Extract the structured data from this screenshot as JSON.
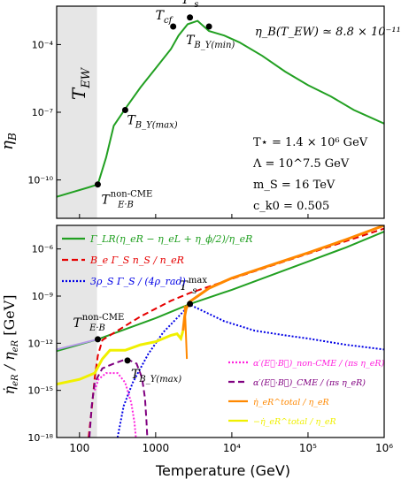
{
  "chart_data": [
    {
      "type": "line",
      "panel": "top",
      "ylabel": "η_B",
      "yscale": "log",
      "ylim_log10": [
        -11.7,
        -2.3
      ],
      "xscale": "log",
      "xlim_log10": [
        1.7,
        6.0
      ],
      "yticks": [
        {
          "v": -4,
          "t": "10⁻⁴"
        },
        {
          "v": -7,
          "t": "10⁻⁷"
        },
        {
          "v": -10,
          "t": "10⁻¹⁰"
        }
      ],
      "shaded_region_label": "T_EW",
      "shaded_range_log10": [
        1.7,
        2.23
      ],
      "series": [
        {
          "color": "#22a022",
          "points": [
            [
              1.7,
              -10.75
            ],
            [
              1.9,
              -10.55
            ],
            [
              2.1,
              -10.35
            ],
            [
              2.24,
              -10.2
            ],
            [
              2.35,
              -9.0
            ],
            [
              2.45,
              -7.6
            ],
            [
              2.6,
              -6.85
            ],
            [
              2.8,
              -5.9
            ],
            [
              3.0,
              -5.05
            ],
            [
              3.2,
              -4.2
            ],
            [
              3.3,
              -3.6
            ],
            [
              3.42,
              -3.1
            ],
            [
              3.55,
              -2.95
            ],
            [
              3.7,
              -3.4
            ],
            [
              3.9,
              -3.6
            ],
            [
              4.1,
              -3.9
            ],
            [
              4.4,
              -4.5
            ],
            [
              4.7,
              -5.2
            ],
            [
              5.0,
              -5.8
            ],
            [
              5.3,
              -6.3
            ],
            [
              5.6,
              -6.9
            ],
            [
              6.0,
              -7.5
            ]
          ]
        }
      ],
      "markers": [
        {
          "x": 2.24,
          "y": -10.2,
          "label_main": "T",
          "label_sub": "E·B",
          "label_sup": "non-CME"
        },
        {
          "x": 2.6,
          "y": -6.9,
          "label_main": "T",
          "label_sub": "B_Y(max)"
        },
        {
          "x": 3.23,
          "y": -3.2,
          "label_main": "T",
          "label_sub": "cf"
        },
        {
          "x": 3.45,
          "y": -2.8,
          "label_main": "T",
          "label_sub": "s",
          "label_sup": "max"
        },
        {
          "x": 3.7,
          "y": -3.2,
          "label_main": "T",
          "label_sub": "B_Y(min)"
        }
      ],
      "annotations": {
        "eta_result": "η_B(T_EW) ≃ 8.8 × 10⁻¹¹",
        "params": [
          "T⋆ = 1.4 × 10⁶ GeV",
          "Λ = 10^7.5 GeV",
          "m_S = 16 TeV",
          "c_k0 = 0.505"
        ]
      }
    },
    {
      "type": "line",
      "panel": "bottom",
      "xlabel": "Temperature (GeV)",
      "ylabel": "η̇_eR / η_eR [GeV]",
      "xscale": "log",
      "yscale": "log",
      "xlim_log10": [
        1.7,
        6.0
      ],
      "ylim_log10": [
        -18,
        -4.5
      ],
      "xticks": [
        {
          "v": 2,
          "t": "100"
        },
        {
          "v": 3,
          "t": "1000"
        },
        {
          "v": 4,
          "t": "10⁴"
        },
        {
          "v": 5,
          "t": "10⁵"
        },
        {
          "v": 6,
          "t": "10⁶"
        }
      ],
      "yticks": [
        {
          "v": -6,
          "t": "10⁻⁶"
        },
        {
          "v": -9,
          "t": "10⁻⁹"
        },
        {
          "v": -12,
          "t": "10⁻¹²"
        },
        {
          "v": -15,
          "t": "10⁻¹⁵"
        },
        {
          "v": -18,
          "t": "10⁻¹⁸"
        }
      ],
      "legend_upper": [
        {
          "label": "Γ_LR(η_eR − η_eL + η_ϕ/2)/η_eR",
          "color": "#22a022",
          "dash": ""
        },
        {
          "label": "B_e Γ_S n_S / n_eR",
          "color": "#e60000",
          "dash": "7,4"
        },
        {
          "label": "3ρ_S Γ_S / (4ρ_rad)",
          "color": "#0000e6",
          "dash": "2,2"
        }
      ],
      "legend_lower": [
        {
          "label": "α′(E⃗·B⃗)_non-CME / (πs η_eR)",
          "color": "#ff22dd",
          "dash": "2,2"
        },
        {
          "label": "α′(E⃗·B⃗)_CME / (πs η_eR)",
          "color": "#800080",
          "dash": "7,4"
        },
        {
          "label": "η̇_eR^total / η_eR",
          "color": "#ff8800",
          "dash": ""
        },
        {
          "label": "−η̇_eR^total / η_eR",
          "color": "#f0f000",
          "dash": ""
        }
      ],
      "series": [
        {
          "name": "gamma_lr",
          "color": "#22a022",
          "width": 2,
          "dash": "",
          "points": [
            [
              1.7,
              -12.5
            ],
            [
              2.24,
              -11.75
            ],
            [
              3.0,
              -10.4
            ],
            [
              3.45,
              -9.5
            ],
            [
              4.0,
              -8.6
            ],
            [
              4.5,
              -7.7
            ],
            [
              5.0,
              -6.8
            ],
            [
              5.5,
              -5.9
            ],
            [
              6.0,
              -4.9
            ]
          ]
        },
        {
          "name": "be_gamma",
          "color": "#e60000",
          "width": 2,
          "dash": "7,4",
          "points": [
            [
              2.12,
              -18
            ],
            [
              2.16,
              -16.2
            ],
            [
              2.2,
              -14.2
            ],
            [
              2.24,
              -12.8
            ],
            [
              2.3,
              -11.8
            ],
            [
              2.5,
              -11.2
            ],
            [
              2.8,
              -10.3
            ],
            [
              3.0,
              -9.8
            ],
            [
              3.2,
              -9.3
            ],
            [
              3.45,
              -8.8
            ],
            [
              3.7,
              -8.4
            ],
            [
              4.0,
              -7.9
            ],
            [
              4.5,
              -7.1
            ],
            [
              5.0,
              -6.3
            ],
            [
              5.5,
              -5.5
            ],
            [
              6.0,
              -4.7
            ]
          ]
        },
        {
          "name": "rho_s",
          "color": "#0000e6",
          "width": 2,
          "dash": "2,2",
          "points": [
            [
              2.5,
              -18
            ],
            [
              2.58,
              -16
            ],
            [
              2.7,
              -14.5
            ],
            [
              2.9,
              -12.7
            ],
            [
              3.1,
              -11.3
            ],
            [
              3.3,
              -10.3
            ],
            [
              3.45,
              -9.55
            ],
            [
              3.6,
              -9.9
            ],
            [
              3.9,
              -10.6
            ],
            [
              4.3,
              -11.2
            ],
            [
              4.7,
              -11.5
            ],
            [
              5.0,
              -11.7
            ],
            [
              5.5,
              -12.1
            ],
            [
              6.0,
              -12.4
            ]
          ]
        },
        {
          "name": "noncme",
          "color": "#ff22dd",
          "width": 2,
          "dash": "2,2",
          "points": [
            [
              2.2,
              -15
            ],
            [
              2.25,
              -14.3
            ],
            [
              2.35,
              -13.9
            ],
            [
              2.5,
              -13.9
            ],
            [
              2.6,
              -14.5
            ],
            [
              2.68,
              -15.8
            ],
            [
              2.72,
              -17
            ],
            [
              2.74,
              -18
            ]
          ]
        },
        {
          "name": "cme",
          "color": "#800080",
          "width": 2,
          "dash": "7,4",
          "points": [
            [
              2.13,
              -18
            ],
            [
              2.16,
              -16
            ],
            [
              2.2,
              -14.5
            ],
            [
              2.3,
              -13.6
            ],
            [
              2.45,
              -13.3
            ],
            [
              2.62,
              -13.0
            ],
            [
              2.75,
              -13.3
            ],
            [
              2.82,
              -14.2
            ],
            [
              2.86,
              -15.5
            ],
            [
              2.88,
              -17
            ],
            [
              2.89,
              -18
            ]
          ]
        },
        {
          "name": "total",
          "color": "#ff8800",
          "width": 3,
          "dash": "",
          "points": [
            [
              3.36,
              -11.2
            ],
            [
              3.38,
              -10.3
            ],
            [
              3.4,
              -9.8
            ],
            [
              3.45,
              -9.35
            ],
            [
              3.7,
              -8.5
            ],
            [
              4.0,
              -7.85
            ],
            [
              4.5,
              -7.05
            ],
            [
              5.0,
              -6.25
            ],
            [
              5.5,
              -5.4
            ],
            [
              6.0,
              -4.5
            ]
          ]
        },
        {
          "name": "total_spike",
          "color": "#ff8800",
          "width": 2,
          "dash": "",
          "points": [
            [
              3.38,
              -9.6
            ],
            [
              3.39,
              -10.5
            ],
            [
              3.4,
              -11.8
            ],
            [
              3.41,
              -13.0
            ]
          ]
        },
        {
          "name": "neg_total",
          "color": "#f0f000",
          "width": 3,
          "dash": "",
          "points": [
            [
              1.7,
              -14.6
            ],
            [
              2.0,
              -14.3
            ],
            [
              2.2,
              -13.9
            ],
            [
              2.3,
              -13.0
            ],
            [
              2.4,
              -12.45
            ],
            [
              2.6,
              -12.45
            ],
            [
              2.8,
              -12.1
            ],
            [
              3.0,
              -11.9
            ],
            [
              3.1,
              -11.7
            ],
            [
              3.2,
              -11.5
            ],
            [
              3.28,
              -11.4
            ],
            [
              3.33,
              -11.7
            ],
            [
              3.36,
              -11.2
            ]
          ]
        },
        {
          "name": "lavender",
          "color": "#b59be6",
          "width": 2,
          "dash": "",
          "points": [
            [
              1.7,
              -12.4
            ],
            [
              2.24,
              -11.75
            ]
          ]
        }
      ],
      "markers": [
        {
          "x": 2.24,
          "y": -11.75,
          "label_main": "T",
          "label_sub": "E·B",
          "label_sup": "non-CME"
        },
        {
          "x": 2.63,
          "y": -13.1,
          "label_main": "T",
          "label_sub": "B_Y(max)"
        },
        {
          "x": 3.45,
          "y": -9.5,
          "label_main": "T",
          "label_sub": "s",
          "label_sup": "max"
        }
      ]
    }
  ]
}
